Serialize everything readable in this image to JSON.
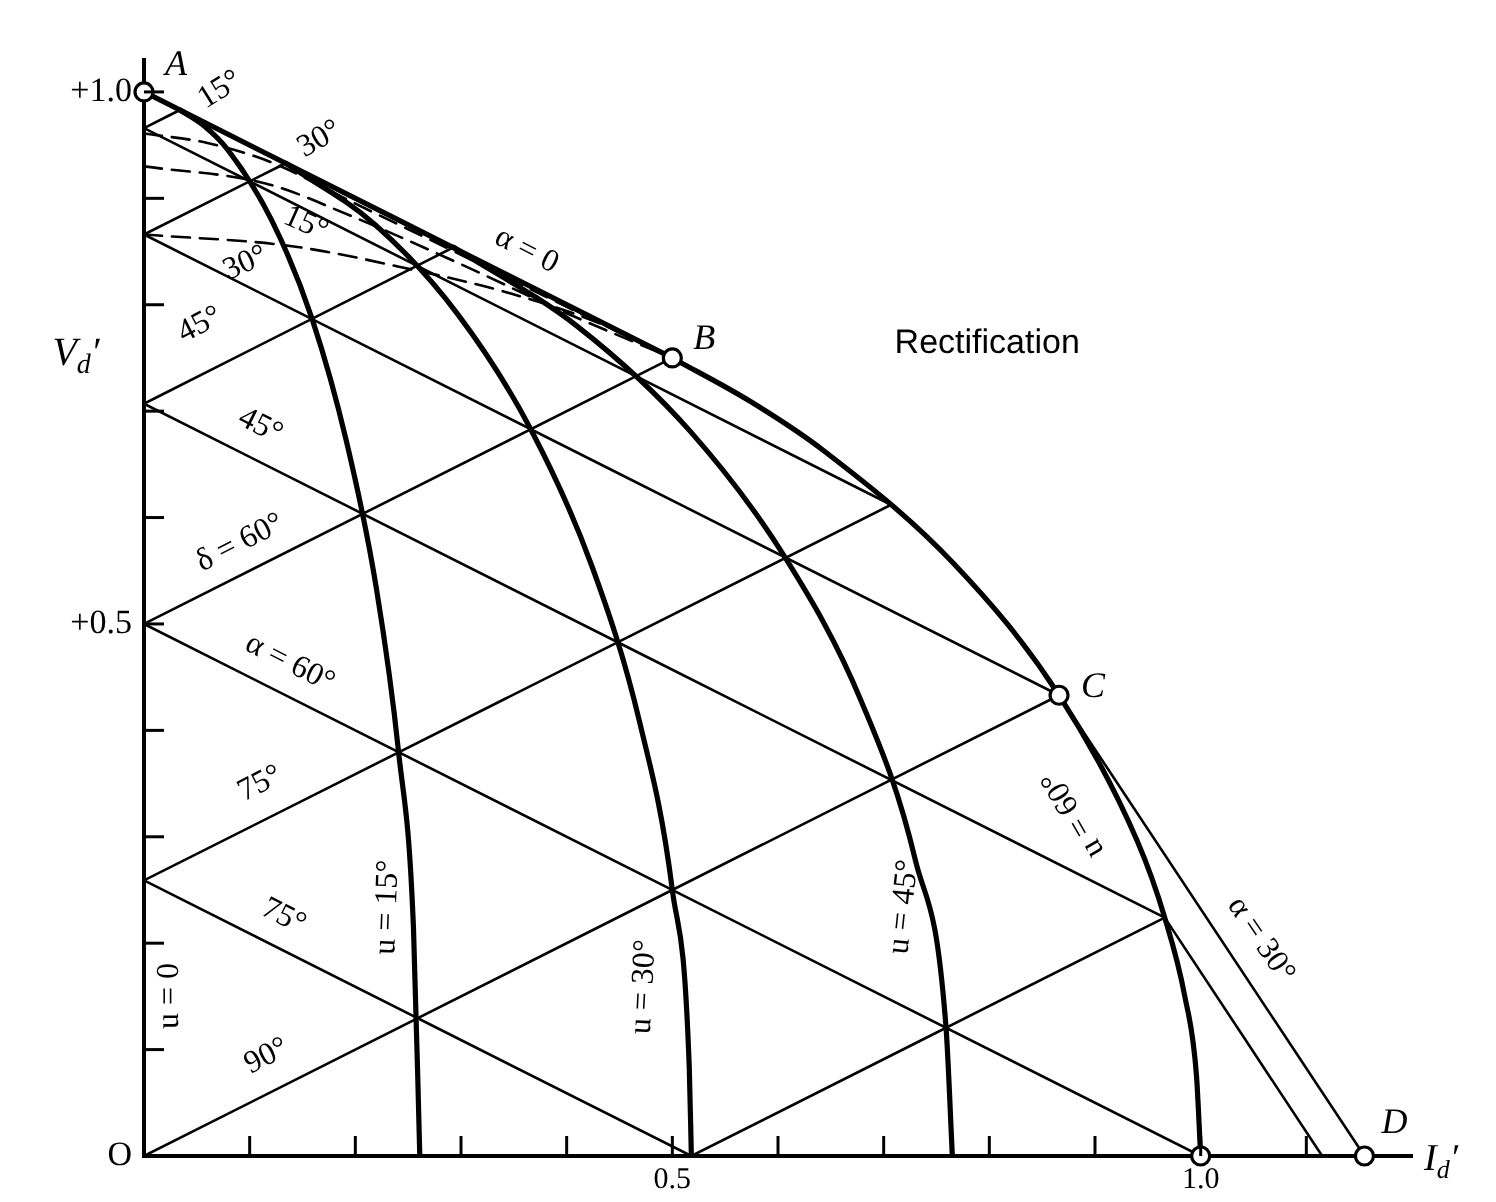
{
  "chart_data": {
    "type": "line",
    "title": "Rectification",
    "xlabel": "I$_{d}$′",
    "ylabel": "V$_{d}$′",
    "xlim": [
      0,
      1.2
    ],
    "ylim": [
      0,
      1.03
    ],
    "xticks": [
      {
        "value": 0.1,
        "label": null
      },
      {
        "value": 0.2,
        "label": null
      },
      {
        "value": 0.3,
        "label": null
      },
      {
        "value": 0.4,
        "label": null
      },
      0.5,
      {
        "value": 0.6,
        "label": null
      },
      {
        "value": 0.7,
        "label": null
      },
      {
        "value": 0.8,
        "label": null
      },
      {
        "value": 0.9,
        "label": null
      },
      {
        "value": 1,
        "label": "1.0"
      },
      {
        "value": 1.1,
        "label": null
      }
    ],
    "yticks": [
      {
        "value": 0,
        "label": "O"
      },
      {
        "value": 0.1,
        "label": null
      },
      {
        "value": 0.2,
        "label": null
      },
      {
        "value": 0.3,
        "label": null
      },
      {
        "value": 0.4,
        "label": null
      },
      {
        "value": 0.5,
        "label": "+0.5"
      },
      {
        "value": 0.6,
        "label": null
      },
      {
        "value": 0.7,
        "label": null
      },
      {
        "value": 0.8,
        "label": null
      },
      {
        "value": 0.9,
        "label": null
      },
      {
        "value": 1,
        "label": "+1.0"
      }
    ],
    "grid": false,
    "legend": false,
    "marker": "none",
    "line_style": "solid",
    "series": [
      {
        "color": "#000000",
        "x": [
          0,
          0.5
        ],
        "values": [
          1,
          0.75
        ]
      },
      {
        "color": "#000000",
        "x": [
          0.034,
          0.057,
          0.079,
          0.121,
          0.159,
          0.192,
          0.22,
          0.241,
          0.255,
          0.261
        ],
        "values": [
          0.983,
          0.968,
          0.946,
          0.879,
          0.787,
          0.67,
          0.533,
          0.379,
          0.215,
          0
        ]
      },
      {
        "color": "#000000",
        "x": [
          0.134,
          0.219,
          0.297,
          0.366,
          0.424,
          0.469,
          0.5,
          0.516,
          0.518
        ],
        "values": [
          0.933,
          0.875,
          0.791,
          0.683,
          0.554,
          0.408,
          0.25,
          0.084,
          0
        ]
      },
      {
        "color": "#000000",
        "x": [
          0.293,
          0.411,
          0.517,
          0.607,
          0.679,
          0.73,
          0.759,
          0.765
        ],
        "values": [
          0.854,
          0.779,
          0.681,
          0.562,
          0.427,
          0.278,
          0.121,
          0
        ]
      },
      {
        "color": "#000000",
        "x": [
          0.5,
          0.574,
          0.643,
          0.766,
          0.866,
          0.94,
          0.966,
          0.985,
          0.996,
          1
        ],
        "values": [
          0.75,
          0.709,
          0.663,
          0.557,
          0.433,
          0.296,
          0.224,
          0.15,
          0.076,
          0
        ]
      },
      {
        "color": "#000000",
        "x": [
          0,
          0.707
        ],
        "values": [
          0.966,
          0.612
        ]
      },
      {
        "color": "#000000",
        "x": [
          0,
          0.866
        ],
        "values": [
          0.866,
          0.433
        ]
      },
      {
        "color": "#000000",
        "x": [
          0,
          0.966
        ],
        "values": [
          0.707,
          0.224
        ]
      },
      {
        "color": "#000000",
        "x": [
          0,
          1
        ],
        "values": [
          0.5,
          0
        ]
      },
      {
        "color": "#000000",
        "x": [
          0,
          0.518
        ],
        "values": [
          0.259,
          0
        ]
      },
      {
        "color": "#000000",
        "x": [
          0,
          0.034
        ],
        "values": [
          0.966,
          0.983
        ]
      },
      {
        "color": "#000000",
        "x": [
          0,
          0.134
        ],
        "values": [
          0.866,
          0.933
        ]
      },
      {
        "color": "#000000",
        "x": [
          0,
          0.293
        ],
        "values": [
          0.707,
          0.854
        ]
      },
      {
        "color": "#000000",
        "x": [
          0,
          0.5
        ],
        "values": [
          0.5,
          0.75
        ]
      },
      {
        "color": "#000000",
        "x": [
          0,
          0.707
        ],
        "values": [
          0.259,
          0.612
        ]
      },
      {
        "color": "#000000",
        "x": [
          0,
          0.866
        ],
        "values": [
          0,
          0.433
        ]
      },
      {
        "color": "#000000",
        "x": [
          0.518,
          0.966
        ],
        "values": [
          0,
          0.224
        ]
      },
      {
        "color": "#000000",
        "x": [
          0.866,
          1.155
        ],
        "values": [
          0.433,
          0
        ]
      },
      {
        "color": "#000000",
        "x": [
          0.966,
          1.115
        ],
        "values": [
          0.224,
          0
        ]
      },
      {
        "color": "#000000",
        "line_style": "dashed",
        "x": [
          0,
          0.06,
          0.12,
          0.2,
          0.3,
          0.4,
          0.5
        ],
        "values": [
          0.961,
          0.952,
          0.934,
          0.895,
          0.847,
          0.798,
          0.75
        ]
      },
      {
        "color": "#000000",
        "line_style": "dashed",
        "x": [
          0,
          0.115,
          0.197,
          0.3,
          0.4,
          0.5
        ],
        "values": [
          0.93,
          0.914,
          0.883,
          0.838,
          0.792,
          0.75
        ]
      },
      {
        "color": "#000000",
        "line_style": "dashed",
        "x": [
          0,
          0.14,
          0.254,
          0.342,
          0.43,
          0.5
        ],
        "values": [
          0.866,
          0.855,
          0.833,
          0.812,
          0.783,
          0.75
        ]
      },
      {
        "type": "scatter",
        "marker": "circle",
        "color": "#000000",
        "x": [
          0,
          0.5,
          0.866,
          1,
          1.155
        ],
        "values": [
          1,
          0.75,
          0.433,
          0,
          0
        ]
      }
    ],
    "annotations": [
      {
        "text": "A",
        "x": 0,
        "y": 1
      },
      {
        "text": "B",
        "x": 0.5,
        "y": 0.75
      },
      {
        "text": "C",
        "x": 0.866,
        "y": 0.433
      },
      {
        "text": "D",
        "x": 1.155,
        "y": 0
      },
      {
        "text": "α = 0",
        "x": 0.362,
        "y": 0.819
      },
      {
        "text": "15°",
        "x": 0.034,
        "y": 0.983
      },
      {
        "text": "30°",
        "x": 0.134,
        "y": 0.933
      },
      {
        "text": "15°",
        "x": 0.153,
        "y": 0.889
      },
      {
        "text": "30°",
        "x": 0.096,
        "y": 0.818
      },
      {
        "text": "45°",
        "x": 0.053,
        "y": 0.734
      },
      {
        "text": "45°",
        "x": 0.11,
        "y": 0.652
      },
      {
        "text": "δ = 60°",
        "x": 0.091,
        "y": 0.546
      },
      {
        "text": "α = 60°",
        "x": 0.138,
        "y": 0.431
      },
      {
        "text": "75°",
        "x": 0.11,
        "y": 0.314
      },
      {
        "text": "75°",
        "x": 0.132,
        "y": 0.193
      },
      {
        "text": "90°",
        "x": 0.116,
        "y": 0.058
      },
      "u = 0",
      {
        "text": "u = 15°",
        "x": 0.255,
        "y": 0.215
      },
      {
        "text": "u = 30°",
        "x": 0.509,
        "y": 0.159
      },
      {
        "text": "u = 45°",
        "x": 0.738,
        "y": 0.234
      },
      {
        "text": "u = 60°",
        "x": 0.927,
        "y": 0.321
      },
      {
        "text": "α = 30°",
        "x": 1.019,
        "y": 0.203
      }
    ]
  }
}
